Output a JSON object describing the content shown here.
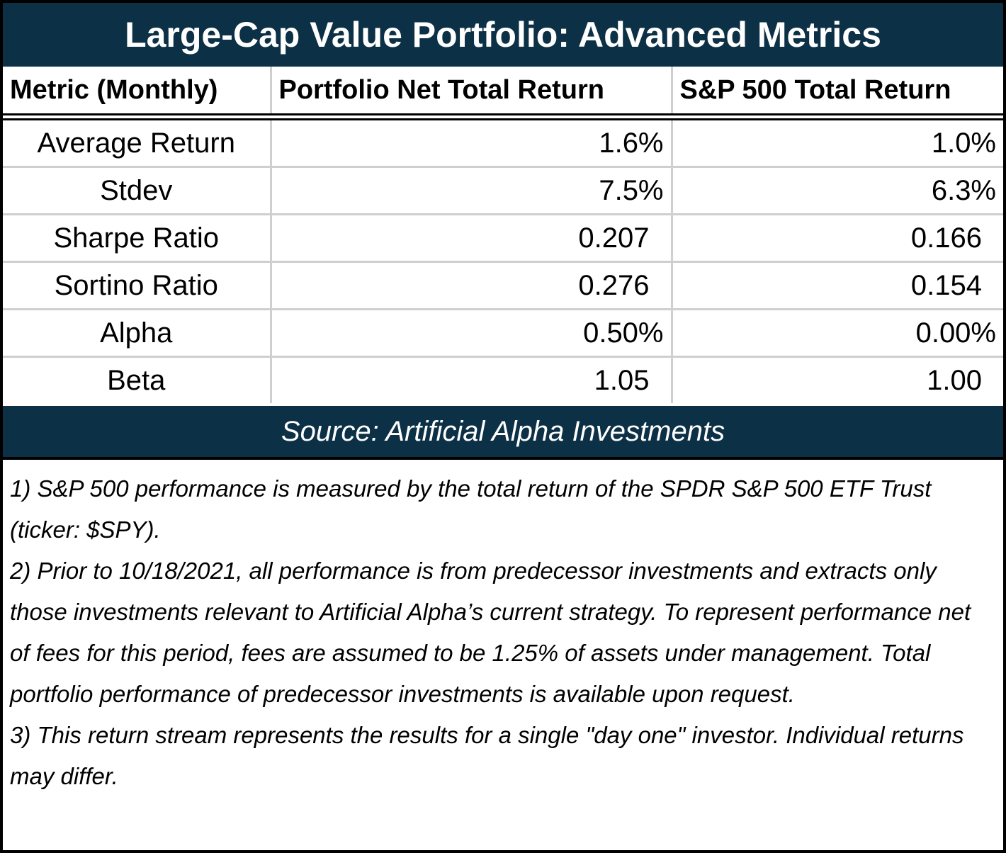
{
  "header": {
    "title": "Large-Cap Value Portfolio: Advanced Metrics"
  },
  "table": {
    "columns": [
      "Metric (Monthly)",
      "Portfolio Net Total Return",
      "S&P 500 Total Return"
    ],
    "rows": [
      [
        "Average Return",
        "1.6%",
        "1.0%"
      ],
      [
        "Stdev",
        "7.5%",
        "6.3%"
      ],
      [
        "Sharpe Ratio",
        "0.207",
        "0.166"
      ],
      [
        "Sortino Ratio",
        "0.276",
        "0.154"
      ],
      [
        "Alpha",
        "0.50%",
        "0.00%"
      ],
      [
        "Beta",
        "1.05",
        "1.00"
      ]
    ]
  },
  "source": "Source: Artificial Alpha Investments",
  "notes": [
    "1) S&P 500 performance is measured by the total return of the SPDR S&P 500 ETF Trust (ticker: $SPY).",
    "2) Prior to 10/18/2021, all performance is from predecessor investments and extracts only those investments relevant to Artificial Alpha’s current strategy. To represent performance net of fees for this period, fees are assumed to be 1.25% of assets under management. Total portfolio performance of predecessor investments is available upon request.",
    "3) This return stream represents the results for a single \"day one\" investor. Individual returns may differ."
  ]
}
